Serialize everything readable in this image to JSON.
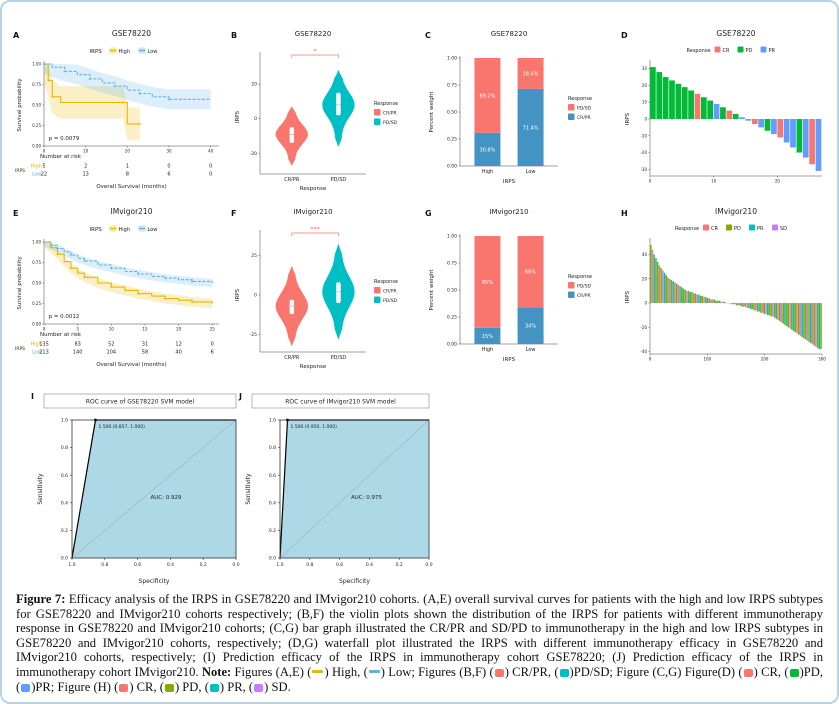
{
  "figure": {
    "border_color": "#b6d3e8",
    "background": "#ffffff"
  },
  "caption": {
    "lead": "Figure 7:",
    "text": "Efficacy analysis of the IRPS in GSE78220 and IMvigor210 cohorts. (A,E) overall survival curves for patients with the high and low IRPS subtypes for GSE78220 and IMvigor210 cohorts respectively; (B,F) the violin plots shown the distribution of the IRPS for patients with different immunotherapy response in GSE78220 and IMvigor210 cohorts; (C,G) bar graph illustrated the CR/PR and SD/PD to immunotherapy in the high and low IRPS subtypes in GSE78220 and IMvigor210 cohorts, respectively; (D,G) waterfall plot illustrated the IRPS with different immunotherapy efficacy in GSE78220 and IMvigor210 cohorts, respectively; (I) Prediction efficacy of the IRPS in immunotherapy cohort GSE78220; (J) Prediction efficacy of the IRPS in immunotherapy cohort IMvigor210.",
    "note_label": "Note:",
    "note_segments": [
      {
        "text": " Figures (A,E) ("
      },
      {
        "type": "line",
        "color": "#E7B800"
      },
      {
        "text": ") High, ("
      },
      {
        "type": "line",
        "color": "#5FB3E4"
      },
      {
        "text": ") Low; Figures (B,F) ("
      },
      {
        "type": "rect",
        "color": "#F8766D"
      },
      {
        "text": ") CR/PR, ("
      },
      {
        "type": "rect",
        "color": "#00BFC4"
      },
      {
        "text": ")PD/SD; Figure (C,G) Figure(D) ("
      },
      {
        "type": "rect",
        "color": "#F8766D"
      },
      {
        "text": ") CR, ("
      },
      {
        "type": "rect",
        "color": "#00BA38"
      },
      {
        "text": ")PD, ("
      },
      {
        "type": "rect",
        "color": "#619CFF"
      },
      {
        "text": ")PR; Figure (H) ("
      },
      {
        "type": "rect",
        "color": "#F8766D"
      },
      {
        "text": ") CR, ("
      },
      {
        "type": "rect",
        "color": "#7CAE00"
      },
      {
        "text": ") PD, ("
      },
      {
        "type": "rect",
        "color": "#00BFC4"
      },
      {
        "text": ") PR, ("
      },
      {
        "type": "rect",
        "color": "#C77CFF"
      },
      {
        "text": ") SD."
      }
    ]
  },
  "chart_data": [
    {
      "panel": "A",
      "type": "km",
      "title": "GSE78220",
      "legend_title": "IRPS",
      "pvalue": "p = 0.0079",
      "xlabel": "Overall Survival (months)",
      "ylabel": "Survival probability",
      "xmax": 42,
      "xticks": [
        0,
        10,
        20,
        30,
        40
      ],
      "yticks": [
        0,
        0.25,
        0.5,
        0.75,
        1
      ],
      "groups": [
        {
          "name": "High",
          "color": "#E7B800",
          "band": 0.2,
          "dashed": false,
          "points": [
            [
              0,
              1
            ],
            [
              1,
              0.8
            ],
            [
              2,
              0.6
            ],
            [
              4,
              0.53
            ],
            [
              19,
              0.53
            ],
            [
              20,
              0.27
            ],
            [
              23,
              0.27
            ]
          ]
        },
        {
          "name": "Low",
          "color": "#5FB3E4",
          "band": 0.12,
          "dashed": true,
          "points": [
            [
              0,
              1
            ],
            [
              2,
              0.96
            ],
            [
              5,
              0.91
            ],
            [
              8,
              0.87
            ],
            [
              11,
              0.82
            ],
            [
              14,
              0.77
            ],
            [
              17,
              0.73
            ],
            [
              20,
              0.68
            ],
            [
              23,
              0.64
            ],
            [
              26,
              0.6
            ],
            [
              30,
              0.57
            ],
            [
              40,
              0.57
            ]
          ]
        }
      ],
      "risk_title": "Number at risk",
      "risk_axis": "IRPS",
      "risk": [
        {
          "name": "High",
          "color": "#E7B800",
          "counts": [
            5,
            2,
            1,
            0,
            0
          ]
        },
        {
          "name": "Low",
          "color": "#5FB3E4",
          "counts": [
            22,
            13,
            8,
            6,
            0
          ]
        }
      ]
    },
    {
      "panel": "B",
      "type": "violin",
      "title": "GSE78220",
      "xlabel": "Response",
      "ylabel": "IRPS",
      "ylim": [
        -32,
        34
      ],
      "yticks": [
        -20,
        0,
        20
      ],
      "significance": "*",
      "legend_title": "Response",
      "groups": [
        {
          "name": "CR/PR",
          "color": "#F8766D",
          "min": -27,
          "max": 7,
          "q1": -14,
          "q3": -5,
          "median": -9
        },
        {
          "name": "PD/SD",
          "color": "#00BFC4",
          "min": -16,
          "max": 28,
          "q1": 2,
          "q3": 15,
          "median": 8
        }
      ]
    },
    {
      "panel": "C",
      "type": "stacked_bar",
      "title": "GSE78220",
      "xlabel": "IRPS",
      "ylabel": "Percent weight",
      "categories": [
        "High",
        "Low"
      ],
      "yticks": [
        0,
        0.25,
        0.5,
        0.75,
        1
      ],
      "legend_title": "Response",
      "series": [
        {
          "name": "PD/SD",
          "color": "#F8766D",
          "values": [
            69.2,
            28.6
          ],
          "labels": [
            "69.2%",
            "28.6%"
          ]
        },
        {
          "name": "CR/PR",
          "color": "#4393C3",
          "values": [
            30.8,
            71.4
          ],
          "labels": [
            "30.8%",
            "71.4%"
          ]
        }
      ]
    },
    {
      "panel": "D",
      "type": "waterfall",
      "title": "GSE78220",
      "ylabel": "IRPS",
      "legend_title": "Response",
      "ylim": [
        -34,
        34
      ],
      "yticks": [
        -30,
        -20,
        -10,
        0,
        10,
        20,
        30
      ],
      "xticks": [
        0,
        10,
        20
      ],
      "xmax": 27,
      "legend": [
        {
          "name": "CR",
          "color": "#F8766D"
        },
        {
          "name": "PD",
          "color": "#00BA38"
        },
        {
          "name": "PR",
          "color": "#619CFF"
        }
      ],
      "values": [
        31,
        28,
        25,
        23,
        21,
        19,
        17,
        15,
        13,
        11,
        9,
        7,
        5,
        3,
        1,
        -1,
        -3,
        -5,
        -7,
        -9,
        -11,
        -14,
        -17,
        -20,
        -23,
        -27,
        -31
      ],
      "colors": [
        "PD",
        "PD",
        "PD",
        "PD",
        "PD",
        "PD",
        "PD",
        "CR",
        "PD",
        "PD",
        "PR",
        "PD",
        "CR",
        "PD",
        "PR",
        "PR",
        "CR",
        "PR",
        "PD",
        "PR",
        "CR",
        "PR",
        "PR",
        "PD",
        "PR",
        "CR",
        "PR"
      ]
    },
    {
      "panel": "E",
      "type": "km",
      "title": "IMvigor210",
      "legend_title": "IRPS",
      "pvalue": "p = 0.0012",
      "xlabel": "Overall Survival (months)",
      "ylabel": "Survival probability",
      "xmax": 26,
      "xticks": [
        0,
        5,
        10,
        15,
        20,
        25
      ],
      "yticks": [
        0,
        0.25,
        0.5,
        0.75,
        1
      ],
      "groups": [
        {
          "name": "High",
          "color": "#E7B800",
          "band": 0.06,
          "dashed": false,
          "points": [
            [
              0,
              1
            ],
            [
              1,
              0.93
            ],
            [
              2,
              0.85
            ],
            [
              3,
              0.76
            ],
            [
              4,
              0.68
            ],
            [
              5,
              0.62
            ],
            [
              6,
              0.57
            ],
            [
              8,
              0.5
            ],
            [
              10,
              0.45
            ],
            [
              12,
              0.41
            ],
            [
              14,
              0.37
            ],
            [
              16,
              0.34
            ],
            [
              18,
              0.31
            ],
            [
              20,
              0.29
            ],
            [
              22,
              0.27
            ],
            [
              25,
              0.25
            ]
          ]
        },
        {
          "name": "Low",
          "color": "#5FB3E4",
          "band": 0.05,
          "dashed": true,
          "points": [
            [
              0,
              1
            ],
            [
              1,
              0.96
            ],
            [
              2,
              0.92
            ],
            [
              3,
              0.88
            ],
            [
              4,
              0.84
            ],
            [
              5,
              0.8
            ],
            [
              6,
              0.77
            ],
            [
              8,
              0.72
            ],
            [
              10,
              0.68
            ],
            [
              12,
              0.64
            ],
            [
              14,
              0.61
            ],
            [
              16,
              0.58
            ],
            [
              18,
              0.56
            ],
            [
              20,
              0.54
            ],
            [
              22,
              0.52
            ],
            [
              25,
              0.5
            ]
          ]
        }
      ],
      "risk_title": "Number at risk",
      "risk_axis": "IRPS",
      "risk": [
        {
          "name": "High",
          "color": "#E7B800",
          "counts": [
            135,
            83,
            52,
            31,
            12,
            0
          ]
        },
        {
          "name": "Low",
          "color": "#5FB3E4",
          "counts": [
            213,
            140,
            104,
            58,
            40,
            6
          ]
        }
      ]
    },
    {
      "panel": "F",
      "type": "violin",
      "title": "IMvigor210",
      "xlabel": "Response",
      "ylabel": "IRPS",
      "ylim": [
        -36,
        36
      ],
      "yticks": [
        -25,
        0,
        25
      ],
      "significance": "***",
      "legend_title": "Response",
      "groups": [
        {
          "name": "CR/PR",
          "color": "#F8766D",
          "min": -32,
          "max": 18,
          "q1": -12,
          "q3": -3,
          "median": -7
        },
        {
          "name": "PD/SD",
          "color": "#00BFC4",
          "min": -28,
          "max": 32,
          "q1": -5,
          "q3": 8,
          "median": 2
        }
      ]
    },
    {
      "panel": "G",
      "type": "stacked_bar",
      "title": "IMvigor210",
      "xlabel": "IRPS",
      "ylabel": "Percent weight",
      "categories": [
        "High",
        "Low"
      ],
      "yticks": [
        0,
        0.25,
        0.5,
        0.75,
        1
      ],
      "legend_title": "Response",
      "series": [
        {
          "name": "PD/SD",
          "color": "#F8766D",
          "values": [
            85,
            66
          ],
          "labels": [
            "85%",
            "66%"
          ]
        },
        {
          "name": "CR/PR",
          "color": "#4393C3",
          "values": [
            15,
            34
          ],
          "labels": [
            "15%",
            "34%"
          ]
        }
      ]
    },
    {
      "panel": "H",
      "type": "waterfall",
      "title": "IMvigor210",
      "ylabel": "IRPS",
      "legend_title": "Response",
      "ylim": [
        -42,
        52
      ],
      "yticks": [
        -40,
        -20,
        0,
        20,
        40
      ],
      "xticks": [
        0,
        100,
        200,
        300
      ],
      "xmax": 300,
      "legend": [
        {
          "name": "CR",
          "color": "#F8766D"
        },
        {
          "name": "PD",
          "color": "#7CAE00"
        },
        {
          "name": "PR",
          "color": "#00BFC4"
        },
        {
          "name": "SD",
          "color": "#C77CFF"
        }
      ],
      "values": [
        48,
        44,
        40,
        37,
        34,
        31,
        29,
        27,
        25,
        23,
        21,
        20,
        19,
        18,
        17,
        16,
        15,
        14,
        13,
        12,
        11,
        10,
        10,
        9,
        9,
        8,
        8,
        7,
        7,
        6,
        6,
        5,
        5,
        4,
        4,
        3,
        3,
        3,
        2,
        2,
        2,
        1,
        1,
        1,
        0,
        0,
        0,
        -1,
        -1,
        -1,
        -2,
        -2,
        -2,
        -3,
        -3,
        -3,
        -4,
        -4,
        -5,
        -5,
        -6,
        -6,
        -7,
        -7,
        -8,
        -8,
        -9,
        -9,
        -10,
        -10,
        -11,
        -11,
        -12,
        -13,
        -14,
        -15,
        -16,
        -17,
        -18,
        -19,
        -20,
        -21,
        -22,
        -23,
        -24,
        -25,
        -26,
        -27,
        -28,
        -29,
        -30,
        -31,
        -32,
        -33,
        -34,
        -35,
        -36,
        -37,
        -38,
        -38
      ],
      "colors": [
        "PD",
        "SD",
        "PD",
        "PR",
        "PD",
        "CR",
        "PD",
        "SD",
        "PR",
        "PD",
        "PD",
        "SD",
        "PD",
        "PR",
        "CR",
        "PD",
        "SD",
        "PD",
        "PR",
        "PD",
        "PD",
        "SD",
        "PD",
        "PR",
        "PD",
        "CR",
        "PD",
        "SD",
        "PR",
        "PD",
        "PD",
        "SD",
        "PD",
        "PR",
        "CR",
        "PD",
        "SD",
        "PD",
        "PR",
        "PD",
        "PD",
        "SD",
        "PD",
        "PR",
        "PD",
        "CR",
        "PD",
        "SD",
        "PR",
        "PD",
        "PD",
        "SD",
        "PD",
        "PR",
        "CR",
        "PD",
        "SD",
        "PD",
        "PR",
        "PD",
        "PD",
        "SD",
        "PD",
        "PR",
        "PD",
        "CR",
        "PD",
        "SD",
        "PR",
        "PD",
        "PD",
        "SD",
        "PD",
        "PR",
        "CR",
        "PD",
        "SD",
        "PD",
        "PR",
        "PD",
        "PD",
        "SD",
        "PD",
        "PR",
        "PD",
        "CR",
        "PD",
        "SD",
        "PR",
        "PD",
        "PD",
        "SD",
        "PD",
        "PR",
        "CR",
        "PD",
        "SD",
        "PD",
        "PR",
        "PD"
      ]
    },
    {
      "panel": "I",
      "type": "roc",
      "title": "ROC curve of GSE78220 SVM model",
      "xlabel": "Specificity",
      "ylabel": "Sensitivity",
      "auc_label": "AUC: 0.929",
      "threshold_label": "1.500 (0.857, 1.000)",
      "fill": "#ADD8E6",
      "curve": [
        [
          1,
          0
        ],
        [
          0.857,
          1
        ],
        [
          0,
          1
        ]
      ],
      "point": [
        0.857,
        1
      ],
      "xticks": [
        1,
        0.8,
        0.6,
        0.4,
        0.2,
        0
      ],
      "yticks": [
        0,
        0.2,
        0.4,
        0.6,
        0.8,
        1
      ]
    },
    {
      "panel": "J",
      "type": "roc",
      "title": "ROC curve of IMvigor210 SVM model",
      "xlabel": "Specificity",
      "ylabel": "Sensitivity",
      "auc_label": "AUC: 0.975",
      "threshold_label": "1.500 (0.950, 1.000)",
      "fill": "#ADD8E6",
      "curve": [
        [
          1,
          0
        ],
        [
          0.95,
          1
        ],
        [
          0,
          1
        ]
      ],
      "point": [
        0.95,
        1
      ],
      "xticks": [
        1,
        0.8,
        0.6,
        0.4,
        0.2,
        0
      ],
      "yticks": [
        0,
        0.2,
        0.4,
        0.6,
        0.8,
        1
      ]
    }
  ]
}
